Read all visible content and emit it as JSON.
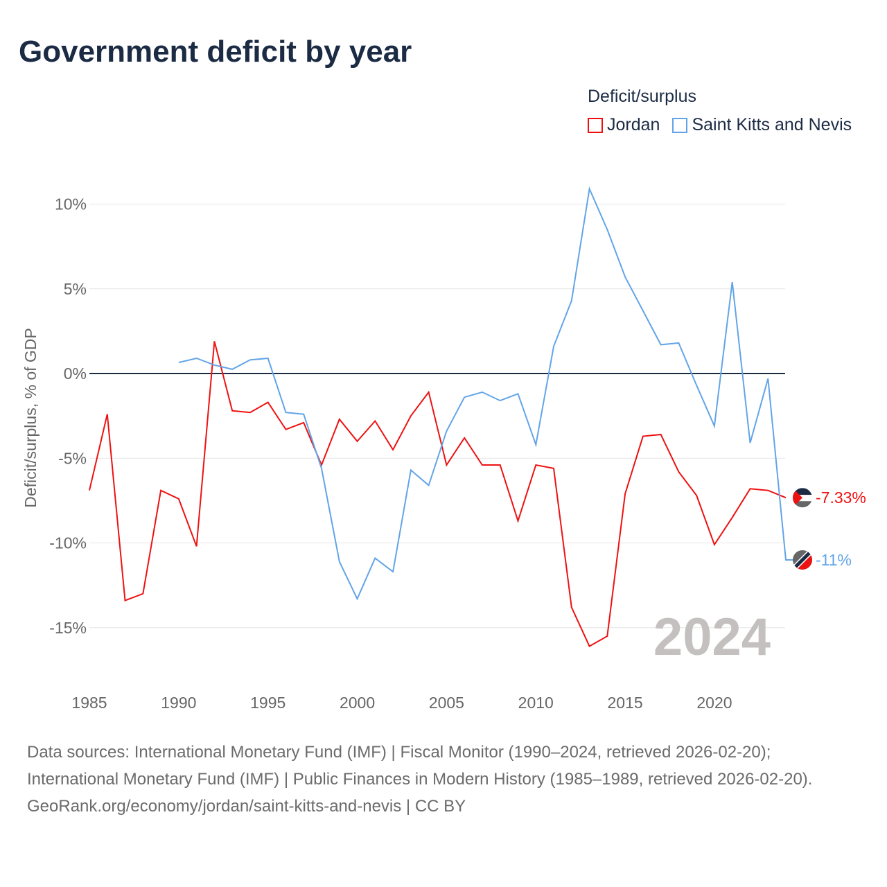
{
  "chart_data": {
    "type": "line",
    "title": "Government deficit by year",
    "legend_title": "Deficit/surplus",
    "legend_position": "top-right",
    "ylabel": "Deficit/surplus, % of GDP",
    "xlabel": "",
    "xlim": [
      1985,
      2024
    ],
    "ylim": [
      -17,
      12
    ],
    "grid": true,
    "x_ticks": [
      1985,
      1990,
      1995,
      2000,
      2005,
      2010,
      2015,
      2020
    ],
    "x_tick_labels": [
      "1985",
      "1990",
      "1995",
      "2000",
      "2005",
      "2010",
      "2015",
      "2020"
    ],
    "y_ticks": [
      10,
      5,
      0,
      -5,
      -10,
      -15
    ],
    "y_tick_labels": [
      "10%",
      "5%",
      "0%",
      "-5%",
      "-10%",
      "-15%"
    ],
    "year_watermark": "2024",
    "series": [
      {
        "name": "Jordan",
        "color": "#ee1111",
        "end_label": "-7.33%",
        "flag": "jordan-flag",
        "x": [
          1985,
          1986,
          1987,
          1988,
          1989,
          1990,
          1991,
          1992,
          1993,
          1994,
          1995,
          1996,
          1997,
          1998,
          1999,
          2000,
          2001,
          2002,
          2003,
          2004,
          2005,
          2006,
          2007,
          2008,
          2009,
          2010,
          2011,
          2012,
          2013,
          2014,
          2015,
          2016,
          2017,
          2018,
          2019,
          2020,
          2021,
          2022,
          2023,
          2024
        ],
        "values": [
          -6.9,
          -2.4,
          -13.4,
          -13.0,
          -6.9,
          -7.4,
          -10.2,
          1.9,
          -2.2,
          -2.3,
          -1.7,
          -3.3,
          -2.9,
          -5.4,
          -2.7,
          -4.0,
          -2.8,
          -4.5,
          -2.5,
          -1.1,
          -5.4,
          -3.8,
          -5.4,
          -5.4,
          -8.7,
          -5.4,
          -5.6,
          -13.8,
          -16.1,
          -15.5,
          -7.1,
          -3.7,
          -3.6,
          -5.8,
          -7.2,
          -10.1,
          -8.5,
          -6.8,
          -6.9,
          -7.33
        ]
      },
      {
        "name": "Saint Kitts and Nevis",
        "color": "#62a4e8",
        "end_label": "-11%",
        "flag": "saint-kitts-and-nevis-flag",
        "x": [
          1990,
          1991,
          1992,
          1993,
          1994,
          1995,
          1996,
          1997,
          1998,
          1999,
          2000,
          2001,
          2002,
          2003,
          2004,
          2005,
          2006,
          2007,
          2008,
          2009,
          2010,
          2011,
          2012,
          2013,
          2014,
          2015,
          2016,
          2017,
          2018,
          2019,
          2020,
          2021,
          2022,
          2023,
          2024
        ],
        "values": [
          0.65,
          0.9,
          0.5,
          0.25,
          0.8,
          0.9,
          -2.3,
          -2.4,
          -5.6,
          -11.1,
          -13.3,
          -10.9,
          -11.7,
          -5.7,
          -6.6,
          -3.4,
          -1.4,
          -1.1,
          -1.6,
          -1.2,
          -4.2,
          1.6,
          4.3,
          10.9,
          8.5,
          5.7,
          3.7,
          1.7,
          1.8,
          -0.7,
          -3.1,
          5.4,
          -4.1,
          -0.3,
          -11.0
        ]
      }
    ]
  },
  "footer": {
    "line1": "Data sources: International Monetary Fund (IMF) | Fiscal Monitor (1990–2024, retrieved 2026-02-20); International Monetary Fund (IMF) | Public Finances in Modern History (1985–1989, retrieved 2026-02-20).",
    "line2": "GeoRank.org/economy/jordan/saint-kitts-and-nevis | CC BY"
  }
}
